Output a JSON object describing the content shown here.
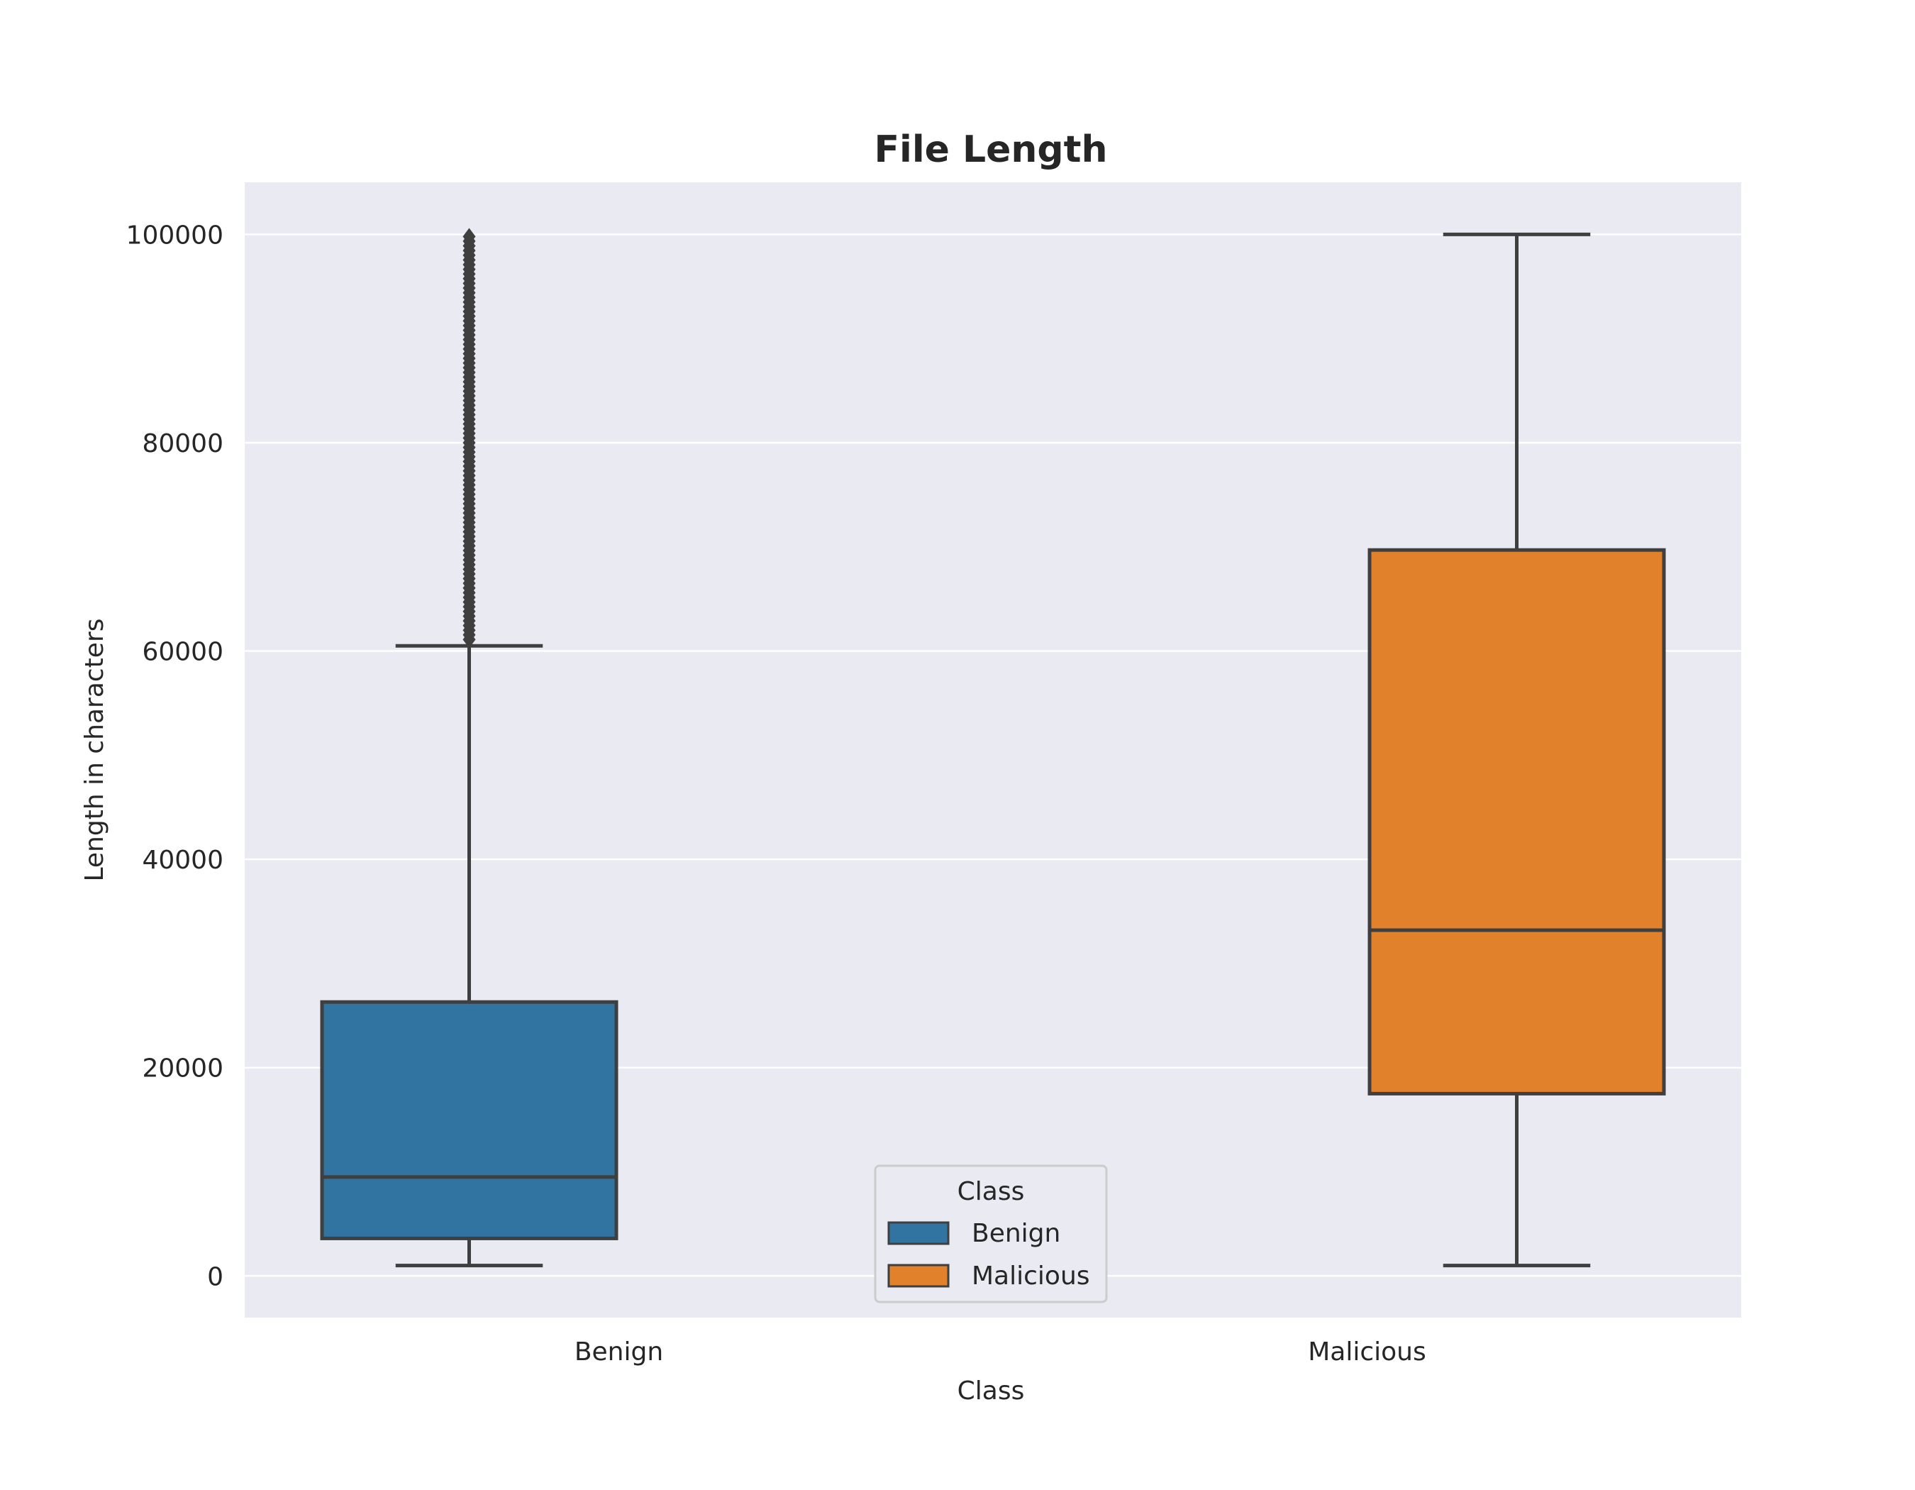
{
  "chart_data": {
    "type": "box",
    "title": "File Length",
    "xlabel": "Class",
    "ylabel": "Length in characters",
    "ylim": [
      -4000,
      105000
    ],
    "yticks": [
      0,
      20000,
      40000,
      60000,
      80000,
      100000
    ],
    "ytick_labels": [
      "0",
      "20000",
      "40000",
      "60000",
      "80000",
      "100000"
    ],
    "categories": [
      "Benign",
      "Malicious"
    ],
    "grid": true,
    "legend": {
      "title": "Class",
      "placement": "lower-center",
      "entries": [
        {
          "label": "Benign",
          "color": "#3274a1"
        },
        {
          "label": "Malicious",
          "color": "#e1812c"
        }
      ]
    },
    "series": [
      {
        "name": "Benign",
        "color": "#3274a1",
        "whisker_low": 1000,
        "q1": 3600,
        "median": 9500,
        "q3": 26300,
        "whisker_high": 60500,
        "outliers_min": 60500,
        "outliers_max": 100000
      },
      {
        "name": "Malicious",
        "color": "#e1812c",
        "whisker_low": 1000,
        "q1": 17500,
        "median": 33200,
        "q3": 69700,
        "whisker_high": 100000
      }
    ],
    "colors": {
      "plot_background": "#eaeaf2",
      "grid": "#ffffff",
      "box_edge": "#3f3f3f"
    }
  }
}
